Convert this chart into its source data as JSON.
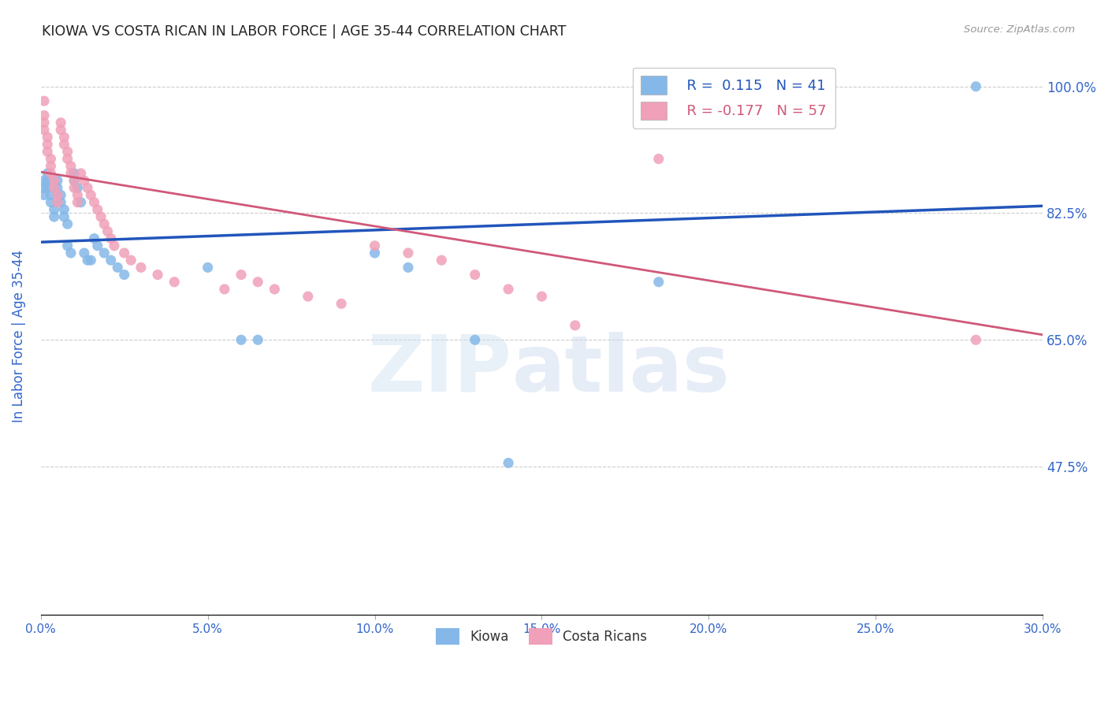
{
  "title": "KIOWA VS COSTA RICAN IN LABOR FORCE | AGE 35-44 CORRELATION CHART",
  "source": "Source: ZipAtlas.com",
  "ylabel": "In Labor Force | Age 35-44",
  "xlim": [
    0.0,
    0.3
  ],
  "ylim": [
    0.27,
    1.04
  ],
  "yticks": [
    0.475,
    0.65,
    0.825,
    1.0
  ],
  "ytick_labels": [
    "47.5%",
    "65.0%",
    "82.5%",
    "100.0%"
  ],
  "xticks": [
    0.0,
    0.05,
    0.1,
    0.15,
    0.2,
    0.25,
    0.3
  ],
  "xtick_labels": [
    "0.0%",
    "5.0%",
    "10.0%",
    "15.0%",
    "20.0%",
    "25.0%",
    "30.0%"
  ],
  "kiowa_color": "#85b8e8",
  "costa_color": "#f0a0b8",
  "line_kiowa_color": "#2255bb",
  "line_costa_color": "#d05878",
  "legend_kiowa_R": "0.115",
  "legend_kiowa_N": "41",
  "legend_costa_R": "-0.177",
  "legend_costa_N": "57",
  "title_color": "#222222",
  "axis_label_color": "#3366cc",
  "tick_color": "#3366cc",
  "kiowa_x": [
    0.001,
    0.001,
    0.001,
    0.002,
    0.002,
    0.002,
    0.003,
    0.003,
    0.004,
    0.004,
    0.005,
    0.005,
    0.006,
    0.006,
    0.007,
    0.007,
    0.008,
    0.008,
    0.009,
    0.01,
    0.01,
    0.011,
    0.012,
    0.013,
    0.014,
    0.015,
    0.016,
    0.017,
    0.019,
    0.021,
    0.023,
    0.025,
    0.05,
    0.06,
    0.065,
    0.1,
    0.11,
    0.13,
    0.14,
    0.185,
    0.28
  ],
  "kiowa_y": [
    0.87,
    0.86,
    0.85,
    0.88,
    0.87,
    0.86,
    0.85,
    0.84,
    0.83,
    0.82,
    0.87,
    0.86,
    0.85,
    0.84,
    0.83,
    0.82,
    0.81,
    0.78,
    0.77,
    0.88,
    0.87,
    0.86,
    0.84,
    0.77,
    0.76,
    0.76,
    0.79,
    0.78,
    0.77,
    0.76,
    0.75,
    0.74,
    0.75,
    0.65,
    0.65,
    0.77,
    0.75,
    0.65,
    0.48,
    0.73,
    1.0
  ],
  "costa_x": [
    0.001,
    0.001,
    0.001,
    0.001,
    0.002,
    0.002,
    0.002,
    0.003,
    0.003,
    0.003,
    0.004,
    0.004,
    0.005,
    0.005,
    0.006,
    0.006,
    0.007,
    0.007,
    0.008,
    0.008,
    0.009,
    0.009,
    0.01,
    0.01,
    0.011,
    0.011,
    0.012,
    0.013,
    0.014,
    0.015,
    0.016,
    0.017,
    0.018,
    0.019,
    0.02,
    0.021,
    0.022,
    0.025,
    0.027,
    0.03,
    0.035,
    0.04,
    0.055,
    0.06,
    0.065,
    0.07,
    0.08,
    0.09,
    0.1,
    0.11,
    0.12,
    0.13,
    0.14,
    0.15,
    0.16,
    0.185,
    0.28
  ],
  "costa_y": [
    0.98,
    0.96,
    0.95,
    0.94,
    0.93,
    0.92,
    0.91,
    0.9,
    0.89,
    0.88,
    0.87,
    0.86,
    0.85,
    0.84,
    0.95,
    0.94,
    0.93,
    0.92,
    0.91,
    0.9,
    0.89,
    0.88,
    0.87,
    0.86,
    0.85,
    0.84,
    0.88,
    0.87,
    0.86,
    0.85,
    0.84,
    0.83,
    0.82,
    0.81,
    0.8,
    0.79,
    0.78,
    0.77,
    0.76,
    0.75,
    0.74,
    0.73,
    0.72,
    0.74,
    0.73,
    0.72,
    0.71,
    0.7,
    0.78,
    0.77,
    0.76,
    0.74,
    0.72,
    0.71,
    0.67,
    0.9,
    0.65
  ],
  "reg_kiowa": [
    0.785,
    0.835
  ],
  "reg_costa": [
    0.882,
    0.657
  ]
}
